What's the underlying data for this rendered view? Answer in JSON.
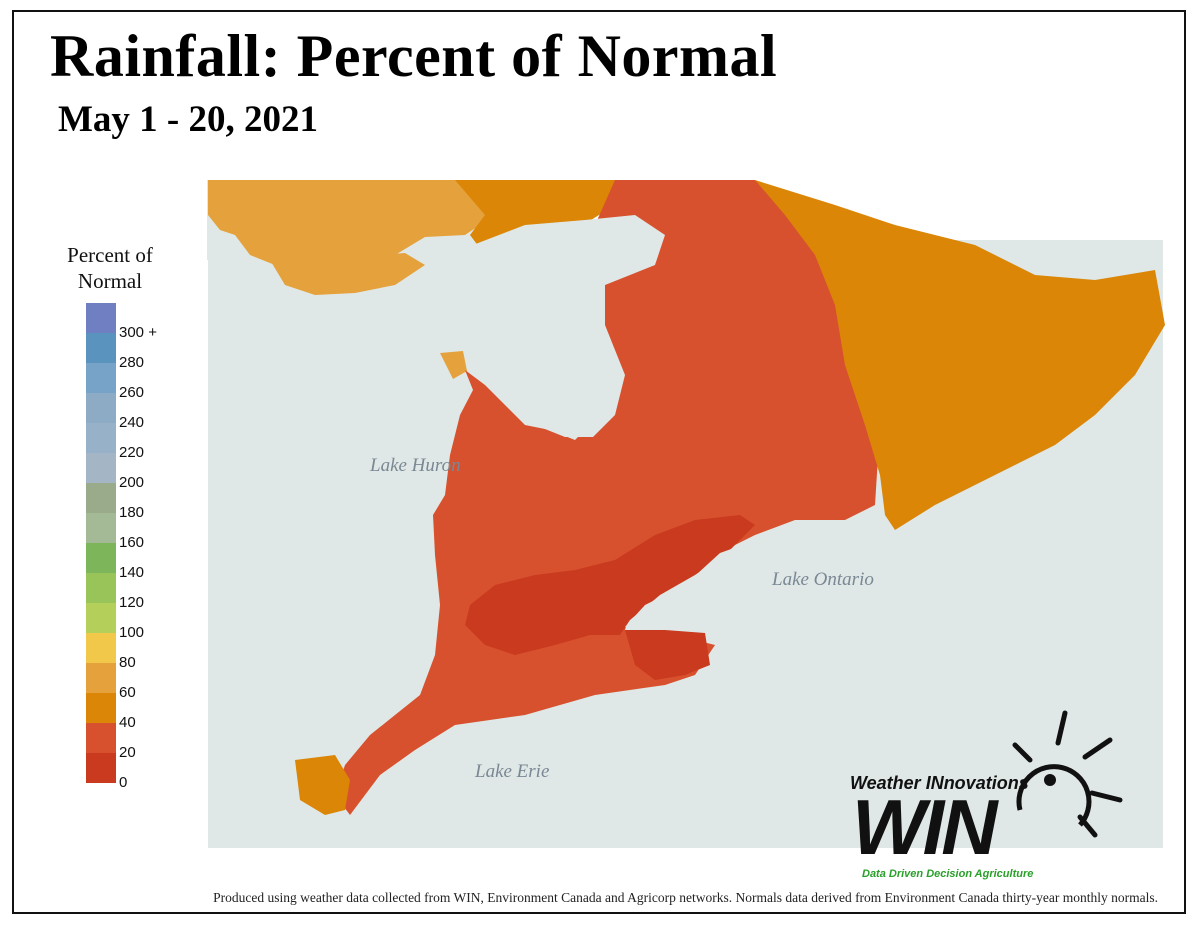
{
  "title": "Rainfall: Percent of Normal",
  "subtitle": "May 1 - 20, 2021",
  "legend": {
    "title_line1": "Percent of",
    "title_line2": "Normal",
    "items": [
      {
        "label": "300 +",
        "color": "#6f7fc2"
      },
      {
        "label": "280",
        "color": "#5a93bd"
      },
      {
        "label": "260",
        "color": "#77a3c8"
      },
      {
        "label": "240",
        "color": "#8eabc6"
      },
      {
        "label": "220",
        "color": "#97b2c8"
      },
      {
        "label": "200",
        "color": "#a4b6c6"
      },
      {
        "label": "180",
        "color": "#9aab8c"
      },
      {
        "label": "160",
        "color": "#a4b995"
      },
      {
        "label": "140",
        "color": "#7db65a"
      },
      {
        "label": "120",
        "color": "#98c45a"
      },
      {
        "label": "100",
        "color": "#b4d05b"
      },
      {
        "label": "80",
        "color": "#f2c84b"
      },
      {
        "label": "60",
        "color": "#e4a13c"
      },
      {
        "label": "40",
        "color": "#db8607"
      },
      {
        "label": "20",
        "color": "#d8512e"
      },
      {
        "label": "0",
        "color": "#c93a1e"
      }
    ]
  },
  "lakes": {
    "huron": "Lake Huron",
    "ontario": "Lake Ontario",
    "erie": "Lake Erie"
  },
  "logo": {
    "top": "Weather INnovations",
    "main": "WIN",
    "tagline": "Data Driven Decision Agriculture"
  },
  "footer": "Produced using weather data collected from WIN, Environment Canada and Agricorp networks. Normals data derived from Environment Canada thirty-year monthly normals.",
  "colors": {
    "water": "#dfe8e6",
    "red": "#d8512e",
    "dark_red": "#c93a1e",
    "orange": "#db8607",
    "light_orange": "#e4a13c"
  }
}
